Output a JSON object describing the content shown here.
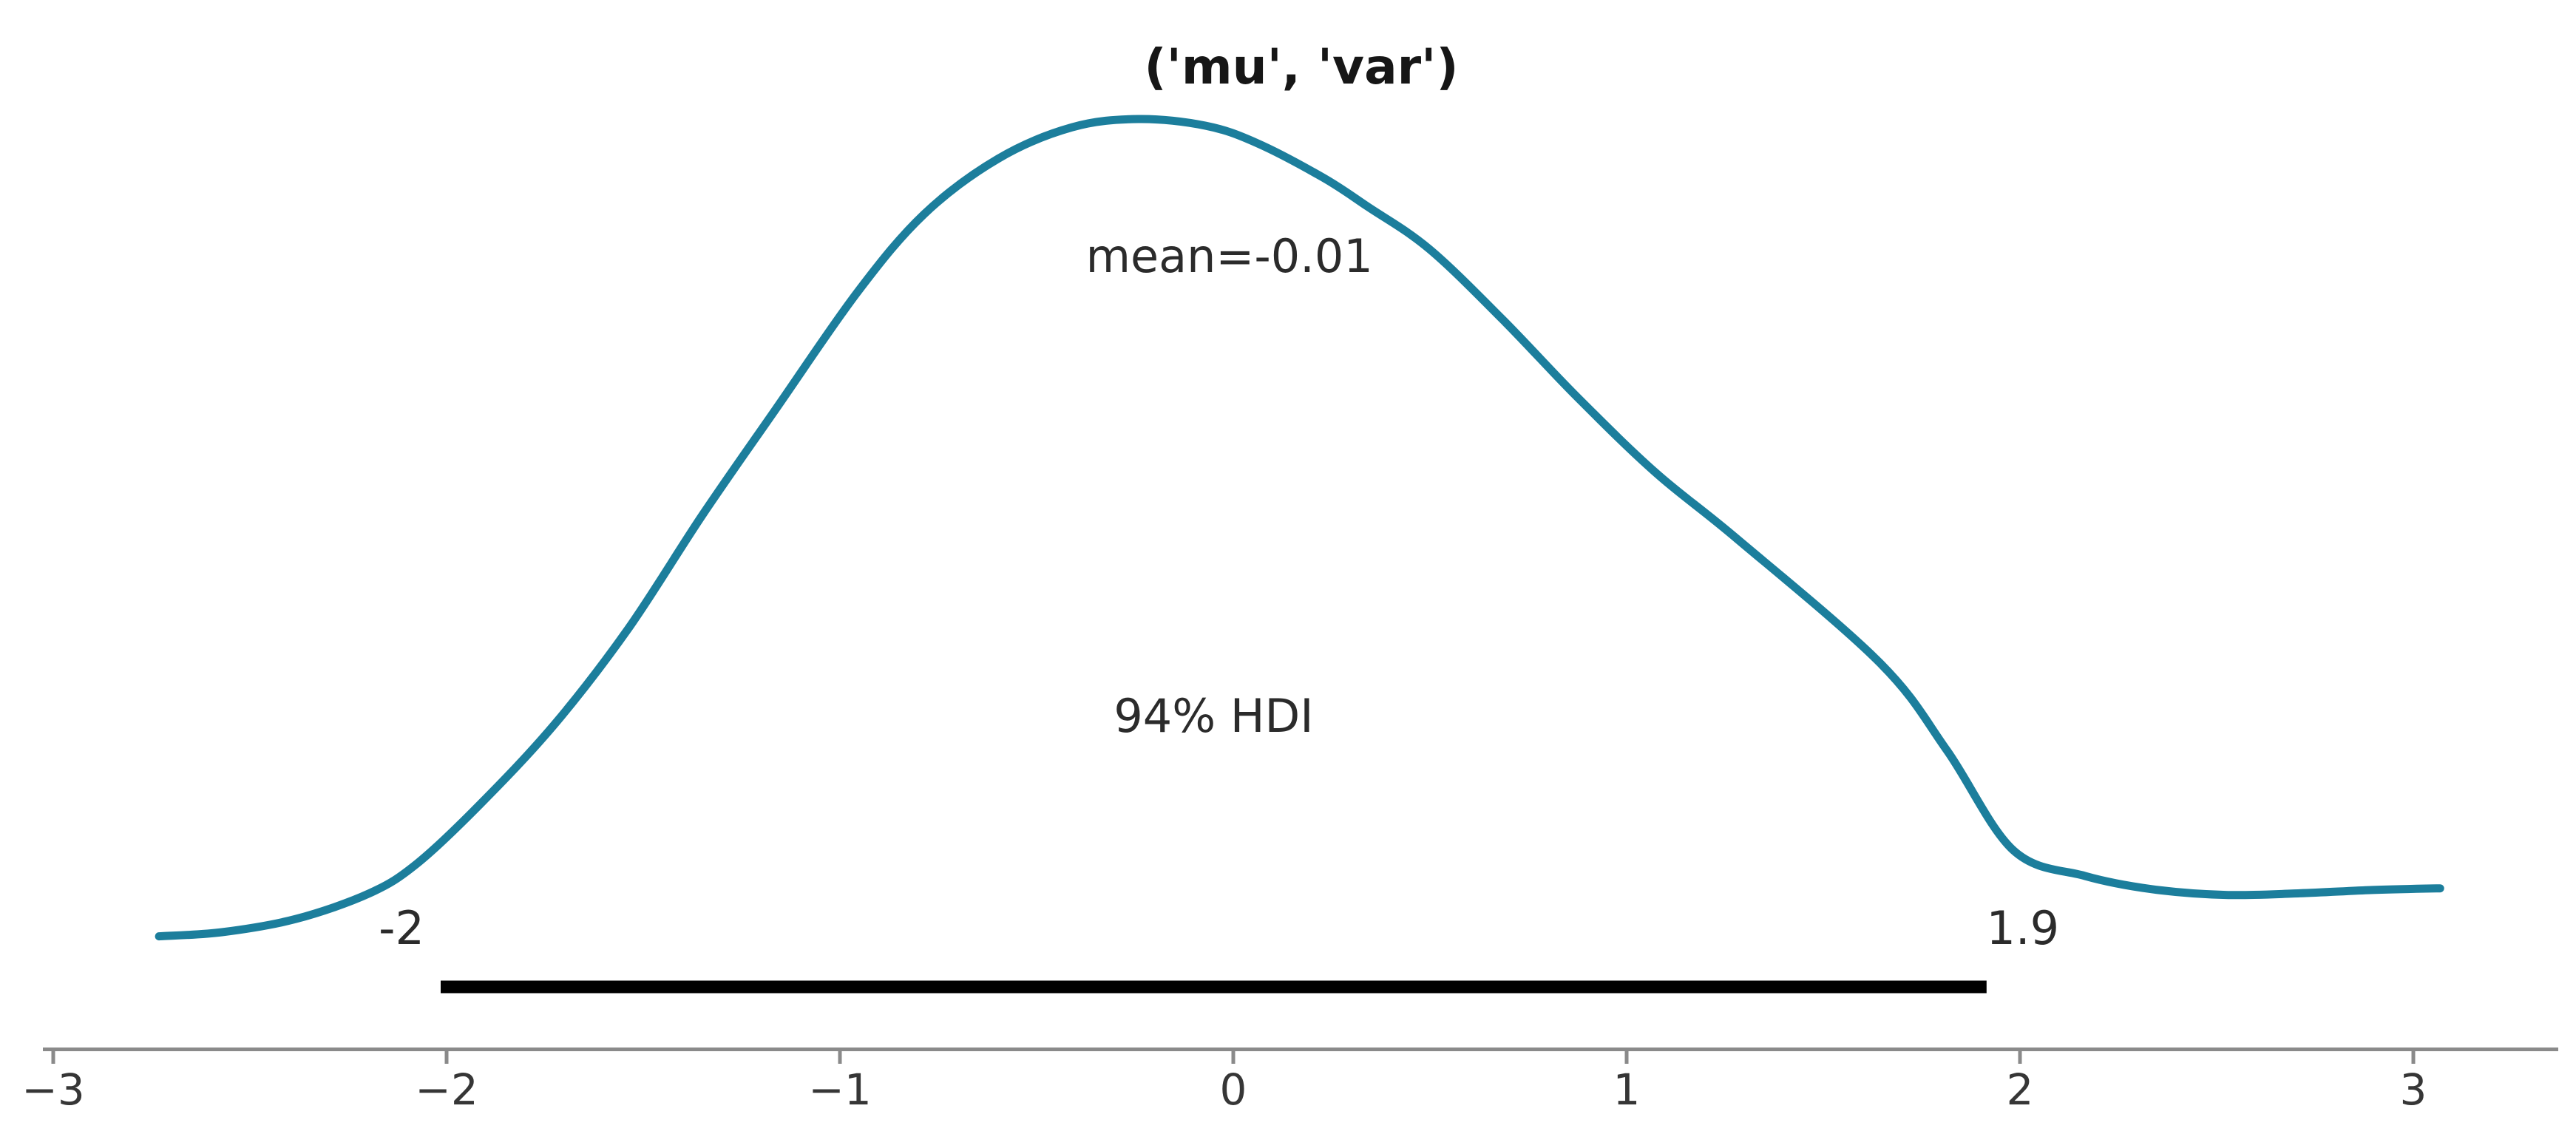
{
  "figure": {
    "title": "('mu', 'var')",
    "background": "#ffffff"
  },
  "chart_data": {
    "type": "line",
    "subtype": "kde-posterior",
    "title": "('mu', 'var')",
    "point_estimate": {
      "label": "mean=-0.01",
      "value": -0.01
    },
    "hdi": {
      "label": "94% HDI",
      "probability": "94%",
      "lower": -2.0,
      "upper": 1.9,
      "lower_label": "-2",
      "upper_label": "1.9"
    },
    "x_ticks": [
      -3,
      -2,
      -1,
      0,
      1,
      2,
      3
    ],
    "x_tick_labels": [
      "−3",
      "−2",
      "−1",
      "0",
      "1",
      "2",
      "3"
    ],
    "xlim": [
      -3.03,
      3.37
    ],
    "ylim": [
      0,
      1.08
    ],
    "grid": false,
    "legend_position": "none",
    "curve": {
      "x": [
        -2.731,
        -2.571,
        -2.383,
        -2.196,
        -2.075,
        -1.914,
        -1.726,
        -1.538,
        -1.35,
        -1.162,
        -0.955,
        -0.786,
        -0.598,
        -0.41,
        -0.241,
        -0.071,
        0.06,
        0.229,
        0.342,
        0.498,
        0.686,
        0.874,
        1.075,
        1.282,
        1.645,
        1.814,
        1.983,
        2.165,
        2.335,
        2.523,
        2.711,
        2.898,
        3.068
      ],
      "density": [
        0.012,
        0.017,
        0.033,
        0.064,
        0.1,
        0.172,
        0.268,
        0.384,
        0.521,
        0.65,
        0.791,
        0.885,
        0.952,
        0.99,
        1.0,
        0.992,
        0.971,
        0.929,
        0.894,
        0.843,
        0.757,
        0.664,
        0.572,
        0.492,
        0.342,
        0.237,
        0.116,
        0.085,
        0.069,
        0.062,
        0.064,
        0.068,
        0.07
      ]
    },
    "colors": {
      "curve": "#1c7e9c",
      "hdi_bar": "#000000",
      "spine": "#8a8a8a",
      "tick": "#8a8a8a",
      "tick_label": "#363636",
      "text": "#2b2b2b",
      "title": "#161616"
    }
  }
}
